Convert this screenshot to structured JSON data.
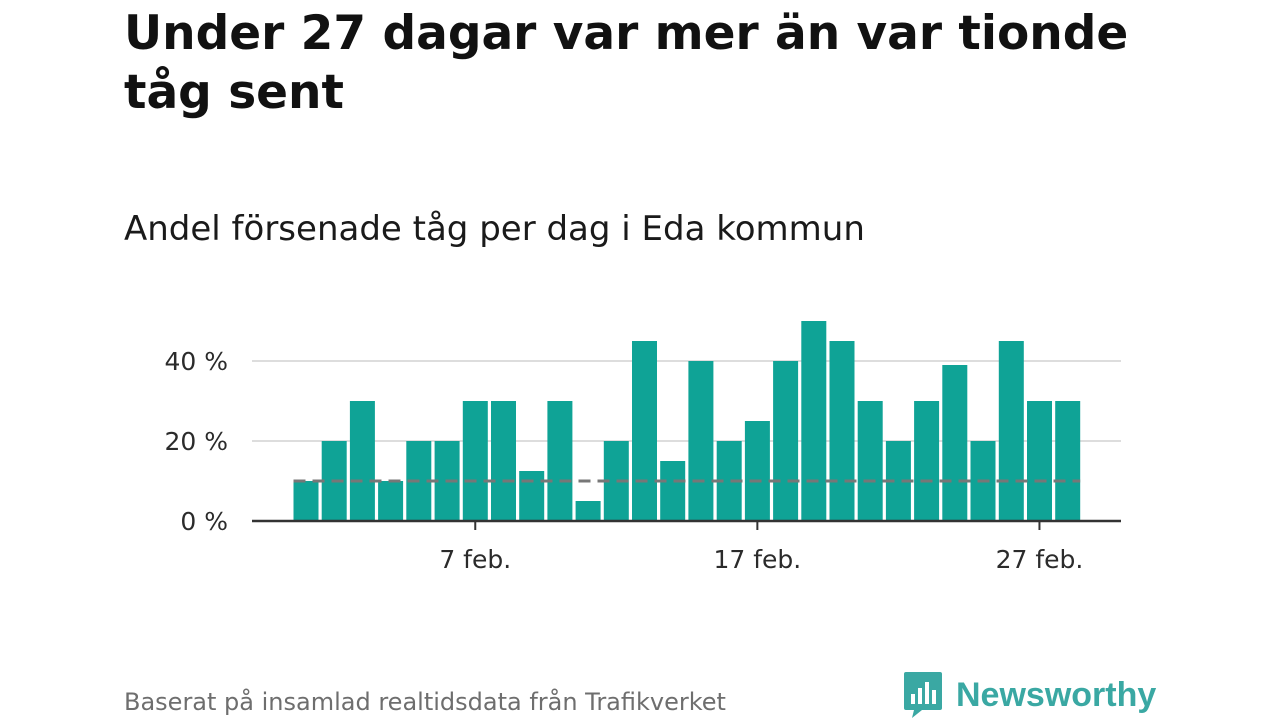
{
  "title": "Under 27 dagar var mer än var tionde tåg sent",
  "subtitle": "Andel försenade tåg per dag i Eda kommun",
  "source": "Baserat på insamlad realtidsdata från Trafikverket",
  "brand": {
    "name": "Newsworthy",
    "logo_icon": "newsworthy-chart-bubble-icon",
    "color": "#3aa8a3"
  },
  "colors": {
    "bar": "#0fa396",
    "reference_line": "#777777",
    "grid": "#dddddd",
    "axis": "#333333"
  },
  "chart_data": {
    "type": "bar",
    "title": "Andel försenade tåg per dag i Eda kommun",
    "xlabel": "",
    "ylabel": "",
    "x": [
      "1 feb.",
      "2 feb.",
      "3 feb.",
      "4 feb.",
      "5 feb.",
      "6 feb.",
      "7 feb.",
      "8 feb.",
      "9 feb.",
      "10 feb.",
      "11 feb.",
      "12 feb.",
      "13 feb.",
      "14 feb.",
      "15 feb.",
      "16 feb.",
      "17 feb.",
      "18 feb.",
      "19 feb.",
      "20 feb.",
      "21 feb.",
      "22 feb.",
      "23 feb.",
      "24 feb.",
      "25 feb.",
      "26 feb.",
      "27 feb.",
      "28 feb."
    ],
    "values": [
      10,
      20,
      30,
      10,
      20,
      20,
      30,
      30,
      12.5,
      30,
      5,
      20,
      45,
      15,
      40,
      20,
      25,
      40,
      50,
      45,
      30,
      20,
      30,
      39,
      20,
      45,
      30,
      30
    ],
    "unit": "%",
    "reference_line": {
      "value": 10,
      "style": "dashed"
    },
    "ylim": [
      0,
      50
    ],
    "y_ticks": [
      {
        "value": 0,
        "label": "0 %"
      },
      {
        "value": 20,
        "label": "20 %"
      },
      {
        "value": 40,
        "label": "40 %"
      }
    ],
    "x_ticks": [
      {
        "index": 6,
        "label": "7 feb."
      },
      {
        "index": 16,
        "label": "17 feb."
      },
      {
        "index": 26,
        "label": "27 feb."
      }
    ],
    "grid": true,
    "legend": "none"
  }
}
